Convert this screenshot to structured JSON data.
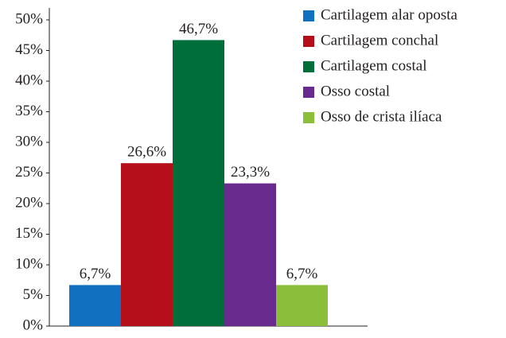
{
  "chart_data": {
    "type": "bar",
    "categories": [
      null
    ],
    "series": [
      {
        "name": "Cartilagem alar oposta",
        "color": "#1170c0",
        "values": [
          6.7
        ],
        "value_labels": [
          "6,7%"
        ]
      },
      {
        "name": "Cartilagem conchal",
        "color": "#b50f1a",
        "values": [
          26.6
        ],
        "value_labels": [
          "26,6%"
        ]
      },
      {
        "name": "Cartilagem costal",
        "color": "#006e3a",
        "values": [
          46.7
        ],
        "value_labels": [
          "46,7%"
        ]
      },
      {
        "name": "Osso costal",
        "color": "#6a2b8f",
        "values": [
          23.3
        ],
        "value_labels": [
          "23,3%"
        ]
      },
      {
        "name": "Osso de crista ilíaca",
        "color": "#8bbe3b",
        "values": [
          6.7
        ],
        "value_labels": [
          "6,7%"
        ]
      }
    ],
    "ylim": [
      0,
      50
    ],
    "yticks": [
      {
        "value": 0,
        "label": "0%"
      },
      {
        "value": 5,
        "label": "5%"
      },
      {
        "value": 10,
        "label": "10%"
      },
      {
        "value": 15,
        "label": "15%"
      },
      {
        "value": 20,
        "label": "20%"
      },
      {
        "value": 25,
        "label": "25%"
      },
      {
        "value": 30,
        "label": "30%"
      },
      {
        "value": 35,
        "label": "35%"
      },
      {
        "value": 40,
        "label": "40%"
      },
      {
        "value": 45,
        "label": "45%"
      },
      {
        "value": 50,
        "label": "50%"
      }
    ],
    "legend": "top-right"
  }
}
